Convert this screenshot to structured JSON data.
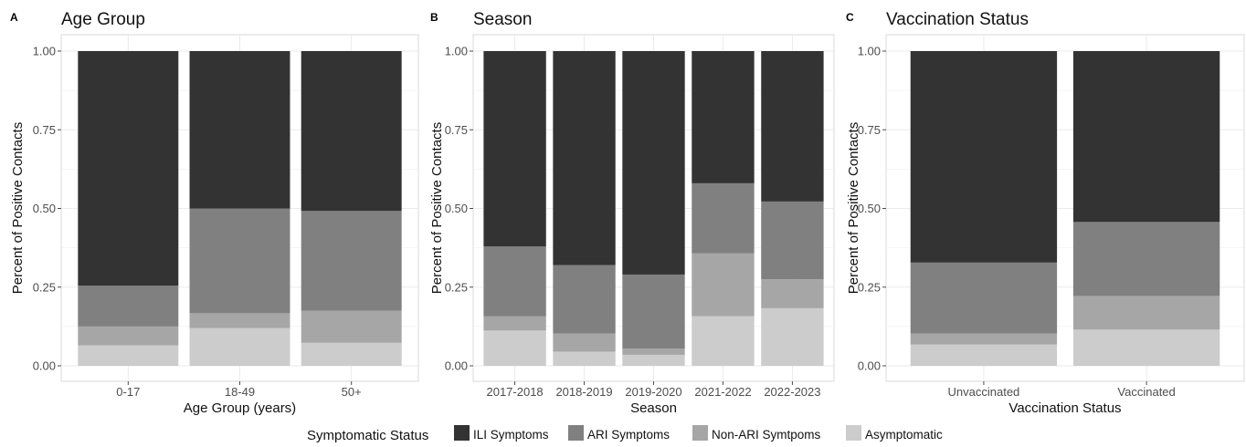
{
  "legend": {
    "title": "Symptomatic Status",
    "items": [
      {
        "label": "ILI Symptoms",
        "color": "#333333"
      },
      {
        "label": "ARI Symptoms",
        "color": "#808080"
      },
      {
        "label": "Non-ARI Symtpoms",
        "color": "#a6a6a6"
      },
      {
        "label": "Asymptomatic",
        "color": "#cccccc"
      }
    ]
  },
  "chart_data": [
    {
      "type": "bar",
      "stacked": true,
      "letter": "A",
      "title": "Age Group",
      "xlabel": "Age Group (years)",
      "ylabel": "Percent of Positive Contacts",
      "ylim": [
        0,
        1
      ],
      "yticks": [
        "0.00",
        "0.25",
        "0.50",
        "0.75",
        "1.00"
      ],
      "categories": [
        "0-17",
        "18-49",
        "50+"
      ],
      "series": [
        {
          "name": "Asymptomatic",
          "values": [
            0.065,
            0.12,
            0.073
          ]
        },
        {
          "name": "Non-ARI Symtpoms",
          "values": [
            0.06,
            0.047,
            0.102
          ]
        },
        {
          "name": "ARI Symptoms",
          "values": [
            0.13,
            0.333,
            0.317
          ]
        },
        {
          "name": "ILI Symptoms",
          "values": [
            0.745,
            0.5,
            0.508
          ]
        }
      ]
    },
    {
      "type": "bar",
      "stacked": true,
      "letter": "B",
      "title": "Season",
      "xlabel": "Season",
      "ylabel": "Percent of Positive Contacts",
      "ylim": [
        0,
        1
      ],
      "yticks": [
        "0.00",
        "0.25",
        "0.50",
        "0.75",
        "1.00"
      ],
      "categories": [
        "2017-2018",
        "2018-2019",
        "2019-2020",
        "2021-2022",
        "2022-2023"
      ],
      "series": [
        {
          "name": "Asymptomatic",
          "values": [
            0.112,
            0.045,
            0.035,
            0.158,
            0.183
          ]
        },
        {
          "name": "Non-ARI Symtpoms",
          "values": [
            0.045,
            0.058,
            0.02,
            0.2,
            0.092
          ]
        },
        {
          "name": "ARI Symptoms",
          "values": [
            0.222,
            0.217,
            0.235,
            0.222,
            0.247
          ]
        },
        {
          "name": "ILI Symptoms",
          "values": [
            0.621,
            0.68,
            0.71,
            0.42,
            0.478
          ]
        }
      ]
    },
    {
      "type": "bar",
      "stacked": true,
      "letter": "C",
      "title": "Vaccination Status",
      "xlabel": "Vaccination Status",
      "ylabel": "Percent of Positive Contacts",
      "ylim": [
        0,
        1
      ],
      "yticks": [
        "0.00",
        "0.25",
        "0.50",
        "0.75",
        "1.00"
      ],
      "categories": [
        "Unvaccinated",
        "Vaccinated"
      ],
      "series": [
        {
          "name": "Asymptomatic",
          "values": [
            0.068,
            0.115
          ]
        },
        {
          "name": "Non-ARI Symtpoms",
          "values": [
            0.035,
            0.107
          ]
        },
        {
          "name": "ARI Symptoms",
          "values": [
            0.225,
            0.235
          ]
        },
        {
          "name": "ILI Symptoms",
          "values": [
            0.672,
            0.543
          ]
        }
      ]
    }
  ]
}
